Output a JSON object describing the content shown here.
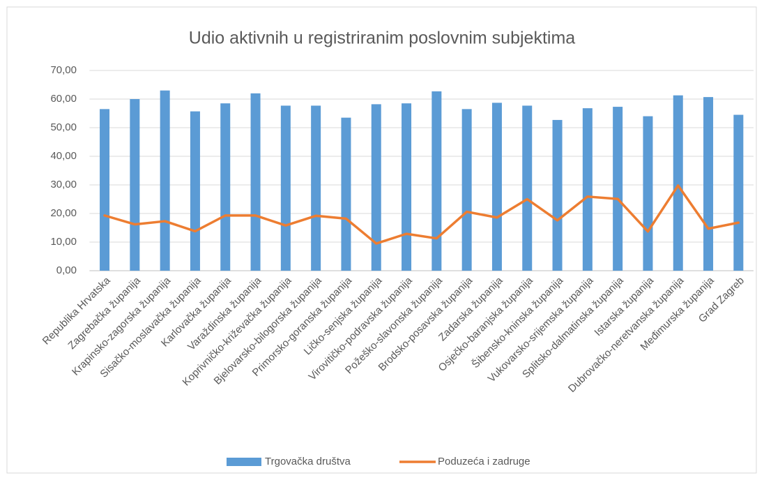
{
  "chart_data": {
    "type": "bar",
    "title": "Udio aktivnih u registriranim poslovnim subjektima",
    "categories": [
      "Republika Hrvatska",
      "Zagrebačka županija",
      "Krapinsko-zagorska županija",
      "Sisačko-moslavačka županija",
      "Karlovačka županija",
      "Varaždinska županija",
      "Koprivničko-križevačka županija",
      "Bjelovarsko-bilogorska županija",
      "Primorsko-goranska županija",
      "Ličko-senjska županija",
      "Virovitičko-podravska županija",
      "Požeško-slavonska županija",
      "Brodsko-posavska županija",
      "Zadarska županija",
      "Osječko-baranjska županija",
      "Šibensko-kninska županija",
      "Vukovarsko-srijemska županija",
      "Splitsko-dalmatinska županija",
      "Istarska županija",
      "Dubrovačko-neretvanska županija",
      "Međimurska županija",
      "Grad Zagreb"
    ],
    "series": [
      {
        "name": "Trgovačka društva",
        "type": "bar",
        "color": "#5b9bd5",
        "values": [
          56.5,
          60,
          63,
          55.7,
          58.5,
          62,
          57.7,
          57.7,
          53.5,
          58.2,
          58.5,
          62.7,
          56.5,
          58.7,
          57.7,
          52.7,
          56.8,
          57.3,
          54,
          61.3,
          60.7,
          54.5
        ]
      },
      {
        "name": "Poduzeća i zadruge",
        "type": "line",
        "color": "#ed7d31",
        "values": [
          19.3,
          16.2,
          17.3,
          13.8,
          19.3,
          19.3,
          15.8,
          19.2,
          18.2,
          9.5,
          12.9,
          11.3,
          20.6,
          18.6,
          25,
          17.6,
          25.9,
          25.1,
          13.7,
          29.8,
          14.7,
          16.8
        ]
      }
    ],
    "ylim": [
      0,
      70
    ],
    "yticks": [
      {
        "value": 0,
        "label": "0,00"
      },
      {
        "value": 10,
        "label": "10,00"
      },
      {
        "value": 20,
        "label": "20,00"
      },
      {
        "value": 30,
        "label": "30,00"
      },
      {
        "value": 40,
        "label": "40,00"
      },
      {
        "value": 50,
        "label": "50,00"
      },
      {
        "value": 60,
        "label": "60,00"
      },
      {
        "value": 70,
        "label": "70,00"
      }
    ],
    "grid": true,
    "legend": "bottom"
  }
}
